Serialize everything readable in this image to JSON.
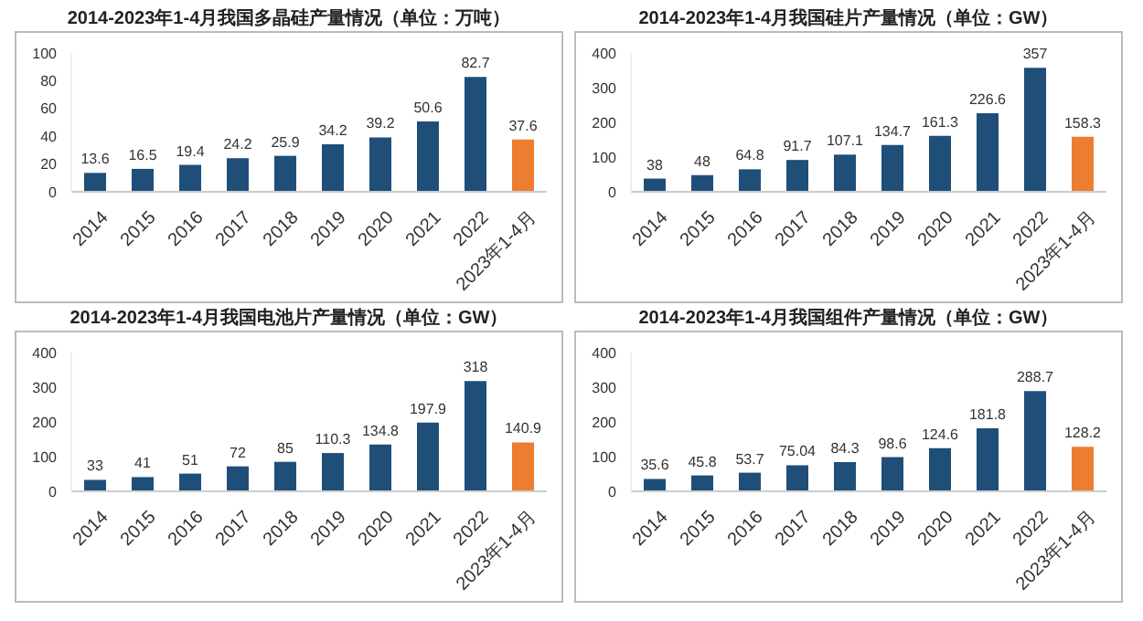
{
  "chart_data": [
    {
      "type": "bar",
      "title": "2014-2023年1-4月我国多晶硅产量情况（单位：万吨）",
      "categories": [
        "2014",
        "2015",
        "2016",
        "2017",
        "2018",
        "2019",
        "2020",
        "2021",
        "2022",
        "2023年1-4月"
      ],
      "values": [
        13.6,
        16.5,
        19.4,
        24.2,
        25.9,
        34.2,
        39.2,
        50.6,
        82.7,
        37.6
      ],
      "colors": [
        "#1f4e79",
        "#1f4e79",
        "#1f4e79",
        "#1f4e79",
        "#1f4e79",
        "#1f4e79",
        "#1f4e79",
        "#1f4e79",
        "#1f4e79",
        "#ed7d31"
      ],
      "ylim": [
        0,
        100
      ],
      "yticks": [
        0,
        20,
        40,
        60,
        80,
        100
      ],
      "data_labels": true
    },
    {
      "type": "bar",
      "title": "2014-2023年1-4月我国硅片产量情况（单位：GW）",
      "categories": [
        "2014",
        "2015",
        "2016",
        "2017",
        "2018",
        "2019",
        "2020",
        "2021",
        "2022",
        "2023年1-4月"
      ],
      "values": [
        38,
        48,
        64.8,
        91.7,
        107.1,
        134.7,
        161.3,
        226.6,
        357,
        158.3
      ],
      "colors": [
        "#1f4e79",
        "#1f4e79",
        "#1f4e79",
        "#1f4e79",
        "#1f4e79",
        "#1f4e79",
        "#1f4e79",
        "#1f4e79",
        "#1f4e79",
        "#ed7d31"
      ],
      "ylim": [
        0,
        400
      ],
      "yticks": [
        0,
        100,
        200,
        300,
        400
      ],
      "data_labels": true
    },
    {
      "type": "bar",
      "title": "2014-2023年1-4月我国电池片产量情况（单位：GW）",
      "categories": [
        "2014",
        "2015",
        "2016",
        "2017",
        "2018",
        "2019",
        "2020",
        "2021",
        "2022",
        "2023年1-4月"
      ],
      "values": [
        33,
        41,
        51,
        72,
        85,
        110.3,
        134.8,
        197.9,
        318,
        140.9
      ],
      "colors": [
        "#1f4e79",
        "#1f4e79",
        "#1f4e79",
        "#1f4e79",
        "#1f4e79",
        "#1f4e79",
        "#1f4e79",
        "#1f4e79",
        "#1f4e79",
        "#ed7d31"
      ],
      "ylim": [
        0,
        400
      ],
      "yticks": [
        0,
        100,
        200,
        300,
        400
      ],
      "data_labels": true
    },
    {
      "type": "bar",
      "title": "2014-2023年1-4月我国组件产量情况（单位：GW）",
      "categories": [
        "2014",
        "2015",
        "2016",
        "2017",
        "2018",
        "2019",
        "2020",
        "2021",
        "2022",
        "2023年1-4月"
      ],
      "values": [
        35.6,
        45.8,
        53.7,
        75.04,
        84.3,
        98.6,
        124.6,
        181.8,
        288.7,
        128.2
      ],
      "colors": [
        "#1f4e79",
        "#1f4e79",
        "#1f4e79",
        "#1f4e79",
        "#1f4e79",
        "#1f4e79",
        "#1f4e79",
        "#1f4e79",
        "#1f4e79",
        "#ed7d31"
      ],
      "ylim": [
        0,
        400
      ],
      "yticks": [
        0,
        100,
        200,
        300,
        400
      ],
      "data_labels": true
    }
  ]
}
